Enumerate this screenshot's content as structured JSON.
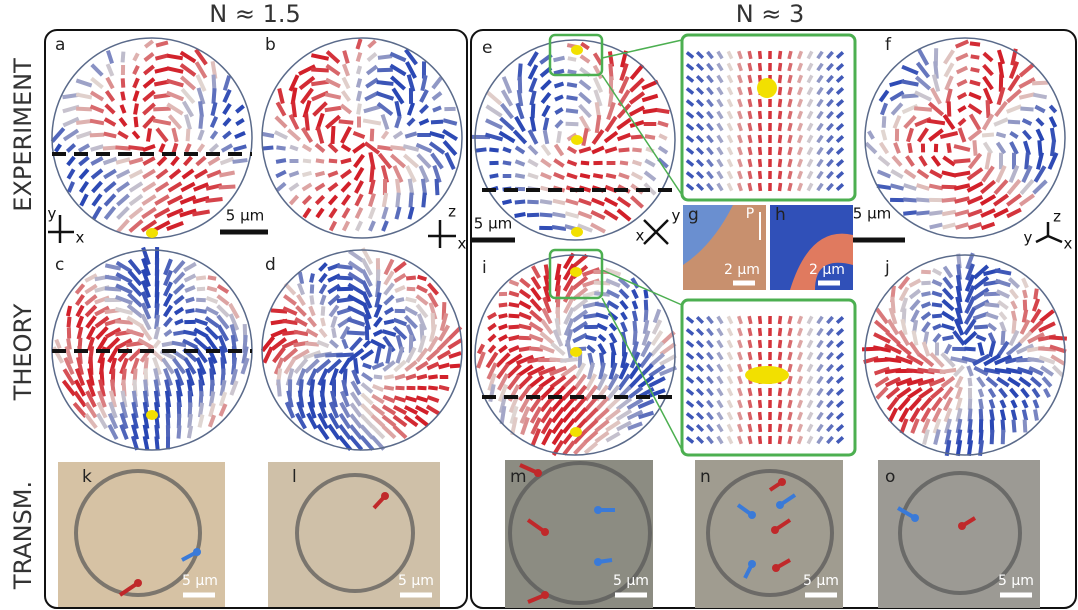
{
  "column_titles": [
    "N ≈ 1.5",
    "N ≈ 3"
  ],
  "row_titles": [
    "EXPERIMENT",
    "THEORY",
    "TRANSM."
  ],
  "panel_labels": [
    "a",
    "b",
    "c",
    "d",
    "e",
    "f",
    "g",
    "h",
    "i",
    "j",
    "k",
    "l",
    "m",
    "n",
    "o"
  ],
  "scale_bars": [
    "5 µm",
    "5 µm",
    "5 µm",
    "2 µm",
    "2 µm",
    "5 µm",
    "5 µm",
    "5 µm",
    "5 µm",
    "5 µm"
  ],
  "axes": [
    [
      "y",
      "x"
    ],
    [
      "z",
      "x"
    ],
    [
      "x",
      "y"
    ],
    [
      "z",
      "y",
      "x"
    ]
  ],
  "polarizer_label": "P"
}
